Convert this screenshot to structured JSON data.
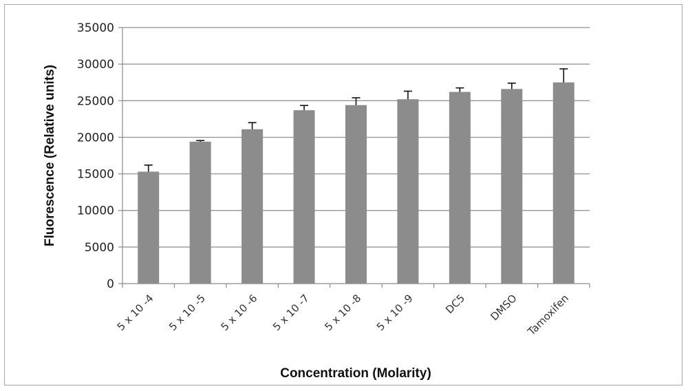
{
  "chart_data": {
    "type": "bar",
    "title": "",
    "xlabel": "Concentration (Molarity)",
    "ylabel": "Fluorescence (Relative units)",
    "categories": [
      "5 x 10 -4",
      "5 x 10 -5",
      "5 x 10 -6",
      "5 x 10 -7",
      "5 x 10 -8",
      "5 x 10 -9",
      "DC5",
      "DMSO",
      "Tamoxifen"
    ],
    "values": [
      15300,
      19400,
      21100,
      23700,
      24400,
      25200,
      26200,
      26600,
      27500
    ],
    "error_plus": [
      900,
      150,
      900,
      650,
      1000,
      1100,
      550,
      800,
      1850
    ],
    "ylim": [
      0,
      35000
    ],
    "yticks": [
      0,
      5000,
      10000,
      15000,
      20000,
      25000,
      30000,
      35000
    ],
    "grid": true,
    "legend": "none",
    "colors": {
      "bar": "#8c8c8c",
      "grid": "#8a8a8a",
      "axis": "#8a8a8a",
      "error": "#111111"
    }
  }
}
